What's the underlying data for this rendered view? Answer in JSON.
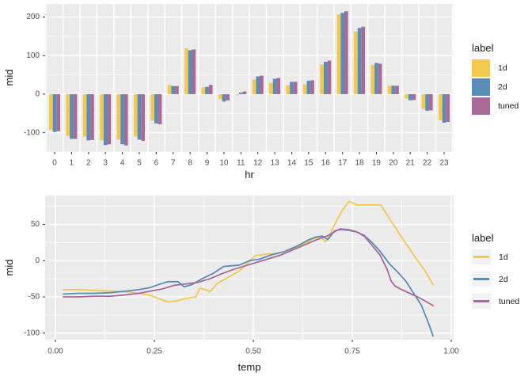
{
  "colors": {
    "series": {
      "1d": "#F2C94D",
      "2d": "#5A8CB8",
      "tuned": "#A76A99"
    },
    "panel_background": "#EBEBEB",
    "grid_major": "#FFFFFF",
    "grid_minor": "#FFFFFF",
    "tick_mark": "#333333",
    "tick_label": "#4D4D4D",
    "axis_title": "#1A1A1A",
    "legend_key_background": "#F2F2F2",
    "page_background": "#FFFFFF"
  },
  "chart_data": [
    {
      "type": "bar",
      "title": "",
      "xlabel": "hr",
      "ylabel": "mid",
      "legend_position": "right",
      "grid": true,
      "ylim": [
        -150,
        234
      ],
      "yticks": [
        -100,
        0,
        100,
        200
      ],
      "yticks_minor": [
        -150,
        -50,
        50,
        150
      ],
      "categories": [
        "0",
        "1",
        "2",
        "3",
        "4",
        "5",
        "6",
        "7",
        "8",
        "9",
        "10",
        "11",
        "12",
        "13",
        "14",
        "15",
        "16",
        "17",
        "18",
        "19",
        "20",
        "21",
        "22",
        "23"
      ],
      "series": [
        {
          "name": "1d",
          "values": [
            -92,
            -108,
            -110,
            -120,
            -118,
            -110,
            -69,
            24,
            119,
            18,
            -13,
            -3,
            38,
            29,
            23,
            25,
            77,
            207,
            163,
            76,
            22,
            -11,
            -38,
            -68
          ]
        },
        {
          "name": "2d",
          "values": [
            -98,
            -116,
            -120,
            -132,
            -130,
            -118,
            -76,
            21,
            114,
            19,
            -19,
            4,
            46,
            40,
            32,
            35,
            84,
            211,
            172,
            81,
            22,
            -16,
            -43,
            -74
          ]
        },
        {
          "name": "tuned",
          "values": [
            -96,
            -116,
            -119,
            -130,
            -133,
            -121,
            -78,
            21,
            116,
            24,
            -16,
            7,
            48,
            42,
            32,
            36,
            87,
            215,
            175,
            79,
            22,
            -15,
            -42,
            -72
          ]
        }
      ],
      "legend": {
        "title": "label",
        "entries": [
          "1d",
          "2d",
          "tuned"
        ]
      }
    },
    {
      "type": "line",
      "title": "",
      "xlabel": "temp",
      "ylabel": "mid",
      "legend_position": "right",
      "grid": true,
      "xlim": [
        -0.026,
        1.006
      ],
      "ylim": [
        -109,
        90
      ],
      "xticks": [
        0,
        0.25,
        0.5,
        0.75,
        1.0
      ],
      "xtick_labels": [
        "0.00",
        "0.25",
        "0.50",
        "0.75",
        "1.00"
      ],
      "xticks_minor": [
        0.125,
        0.375,
        0.625,
        0.875
      ],
      "yticks": [
        -100,
        -50,
        0,
        50
      ],
      "yticks_minor": [
        -75,
        -25,
        25,
        75
      ],
      "series": [
        {
          "name": "1d",
          "x": [
            0.02,
            0.06,
            0.1,
            0.14,
            0.18,
            0.21,
            0.24,
            0.26,
            0.285,
            0.31,
            0.33,
            0.355,
            0.365,
            0.38,
            0.39,
            0.41,
            0.44,
            0.465,
            0.485,
            0.505,
            0.53,
            0.56,
            0.6,
            0.63,
            0.655,
            0.67,
            0.682,
            0.695,
            0.71,
            0.725,
            0.742,
            0.762,
            0.79,
            0.822,
            0.85,
            0.88,
            0.91,
            0.935,
            0.954
          ],
          "y": [
            -40,
            -40,
            -41,
            -42,
            -43,
            -45,
            -48,
            -52,
            -57,
            -55,
            -52,
            -50,
            -38,
            -40,
            -43,
            -31,
            -22,
            -14,
            -4,
            7,
            9,
            10,
            16,
            24,
            31,
            33,
            26,
            38,
            55,
            70,
            82,
            77,
            77,
            77,
            53,
            28,
            4,
            -15,
            -33
          ]
        },
        {
          "name": "2d",
          "x": [
            0.02,
            0.06,
            0.1,
            0.14,
            0.18,
            0.21,
            0.24,
            0.26,
            0.285,
            0.31,
            0.325,
            0.345,
            0.37,
            0.4,
            0.425,
            0.445,
            0.465,
            0.49,
            0.515,
            0.545,
            0.575,
            0.61,
            0.64,
            0.66,
            0.675,
            0.688,
            0.705,
            0.72,
            0.74,
            0.76,
            0.78,
            0.8,
            0.82,
            0.845,
            0.865,
            0.885,
            0.905,
            0.925,
            0.945,
            0.954
          ],
          "y": [
            -46,
            -45,
            -45,
            -44,
            -42,
            -40,
            -37,
            -33,
            -29,
            -29,
            -36,
            -33,
            -25,
            -17,
            -8,
            -7,
            -6,
            0,
            2,
            8,
            12,
            20,
            29,
            33,
            34,
            29,
            41,
            43,
            42,
            40,
            35,
            25,
            13,
            -5,
            -16,
            -28,
            -45,
            -62,
            -90,
            -104
          ]
        },
        {
          "name": "tuned",
          "x": [
            0.02,
            0.06,
            0.1,
            0.14,
            0.18,
            0.21,
            0.24,
            0.27,
            0.3,
            0.33,
            0.36,
            0.39,
            0.42,
            0.45,
            0.48,
            0.51,
            0.54,
            0.57,
            0.6,
            0.63,
            0.66,
            0.69,
            0.705,
            0.72,
            0.74,
            0.76,
            0.78,
            0.8,
            0.82,
            0.838,
            0.848,
            0.858,
            0.875,
            0.895,
            0.915,
            0.935,
            0.954
          ],
          "y": [
            -50,
            -50,
            -49,
            -49,
            -47,
            -45,
            -42,
            -39,
            -34,
            -32,
            -30,
            -25,
            -18,
            -12,
            -7,
            -2,
            3,
            8,
            15,
            22,
            29,
            35,
            40,
            44,
            43,
            40,
            34,
            21,
            8,
            -12,
            -28,
            -35,
            -40,
            -45,
            -50,
            -56,
            -62
          ]
        }
      ],
      "legend": {
        "title": "label",
        "entries": [
          "1d",
          "2d",
          "tuned"
        ]
      }
    }
  ]
}
